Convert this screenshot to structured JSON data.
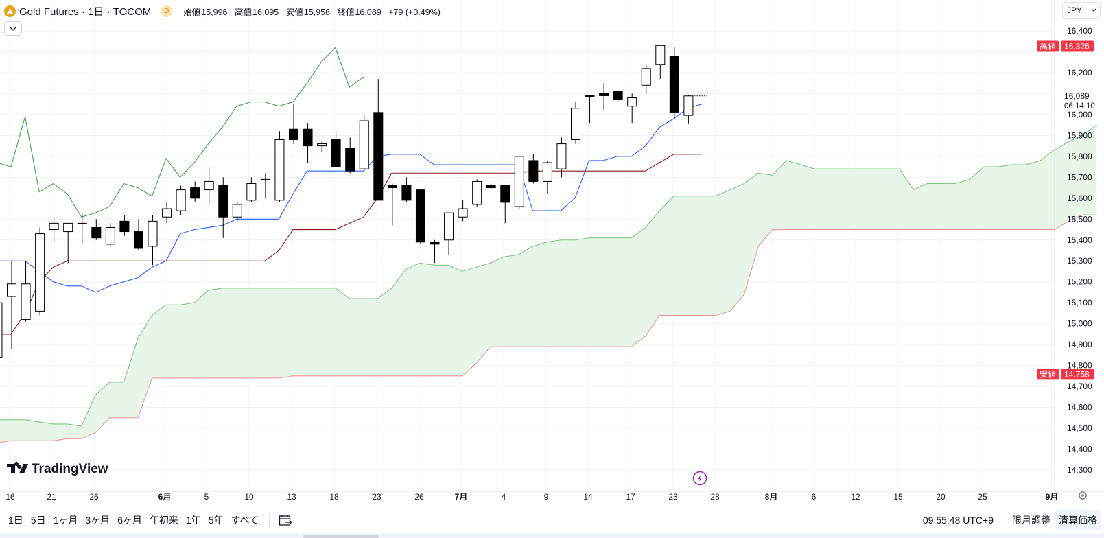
{
  "header": {
    "symbol_title": "Gold Futures · 1日 · TOCOM",
    "delay_badge": "D",
    "ohlc": [
      {
        "label": "始値",
        "value": "15,996"
      },
      {
        "label": "高値",
        "value": "16,095"
      },
      {
        "label": "安値",
        "value": "15,958"
      },
      {
        "label": "終値",
        "value": "16,089"
      }
    ],
    "change": "+79 (+0.49%)"
  },
  "currency": "JPY",
  "price_axis": {
    "labels": [
      "16,400",
      "16,200",
      "16,000",
      "15,900",
      "15,800",
      "15,700",
      "15,600",
      "15,500",
      "15,400",
      "15,300",
      "15,200",
      "15,100",
      "15,000",
      "14,900",
      "14,800",
      "14,700",
      "14,600",
      "14,500",
      "14,400",
      "14,300"
    ],
    "high_marker": {
      "label": "高値",
      "value": "16,326"
    },
    "low_marker": {
      "label": "安値",
      "value": "14,758"
    },
    "last_price": "16,089",
    "countdown": "06:14:10"
  },
  "time_axis": {
    "labels": [
      "16",
      "21",
      "26",
      "6月",
      "5",
      "10",
      "13",
      "18",
      "23",
      "26",
      "7月",
      "4",
      "9",
      "14",
      "17",
      "23",
      "28",
      "8月",
      "6",
      "12",
      "15",
      "20",
      "25",
      "9月"
    ]
  },
  "branding": "TradingView",
  "colors": {
    "tenkan": "#2962ff",
    "kijun": "#8b1a1a",
    "chikou": "#43a047",
    "span_b": "#ef9a9a",
    "cloud": "#e8f5e9",
    "up_body": "#ffffff",
    "down_body": "#000000",
    "marker_red": "#f23645"
  },
  "chart_data": {
    "type": "candlestick",
    "title": "Gold Futures · 1日 · TOCOM",
    "indicator": "Ichimoku Cloud",
    "ylim": [
      14220,
      16460
    ],
    "date_labels": [
      "16",
      "21",
      "26",
      "6月",
      "5",
      "10",
      "13",
      "18",
      "23",
      "26",
      "7月",
      "4",
      "9",
      "14",
      "17",
      "23",
      "28",
      "8月",
      "6",
      "12",
      "15",
      "20",
      "25",
      "9月"
    ],
    "candles": [
      {
        "o": 14840,
        "h": 15160,
        "l": 14830,
        "c": 15100
      },
      {
        "o": 15130,
        "h": 15300,
        "l": 14880,
        "c": 15190
      },
      {
        "o": 15020,
        "h": 15300,
        "l": 15010,
        "c": 15190
      },
      {
        "o": 15060,
        "h": 15460,
        "l": 15040,
        "c": 15430
      },
      {
        "o": 15450,
        "h": 15510,
        "l": 15390,
        "c": 15480
      },
      {
        "o": 15440,
        "h": 15470,
        "l": 15290,
        "c": 15480
      },
      {
        "o": 15480,
        "h": 15530,
        "l": 15380,
        "c": 15480
      },
      {
        "o": 15460,
        "h": 15500,
        "l": 15400,
        "c": 15410
      },
      {
        "o": 15380,
        "h": 15480,
        "l": 15370,
        "c": 15460
      },
      {
        "o": 15490,
        "h": 15520,
        "l": 15420,
        "c": 15440
      },
      {
        "o": 15440,
        "h": 15500,
        "l": 15350,
        "c": 15360
      },
      {
        "o": 15370,
        "h": 15520,
        "l": 15280,
        "c": 15490
      },
      {
        "o": 15510,
        "h": 15580,
        "l": 15480,
        "c": 15550
      },
      {
        "o": 15540,
        "h": 15660,
        "l": 15520,
        "c": 15640
      },
      {
        "o": 15650,
        "h": 15680,
        "l": 15580,
        "c": 15600
      },
      {
        "o": 15640,
        "h": 15750,
        "l": 15570,
        "c": 15680
      },
      {
        "o": 15660,
        "h": 15700,
        "l": 15410,
        "c": 15510
      },
      {
        "o": 15510,
        "h": 15580,
        "l": 15490,
        "c": 15570
      },
      {
        "o": 15590,
        "h": 15700,
        "l": 15580,
        "c": 15670
      },
      {
        "o": 15690,
        "h": 15720,
        "l": 15600,
        "c": 15690
      },
      {
        "o": 15590,
        "h": 15920,
        "l": 15580,
        "c": 15880
      },
      {
        "o": 15930,
        "h": 16050,
        "l": 15860,
        "c": 15880
      },
      {
        "o": 15930,
        "h": 15960,
        "l": 15770,
        "c": 15850
      },
      {
        "o": 15850,
        "h": 15870,
        "l": 15820,
        "c": 15860
      },
      {
        "o": 15880,
        "h": 15920,
        "l": 15760,
        "c": 15750
      },
      {
        "o": 15840,
        "h": 15890,
        "l": 15720,
        "c": 15730
      },
      {
        "o": 15740,
        "h": 16000,
        "l": 15740,
        "c": 15970
      },
      {
        "o": 16010,
        "h": 16170,
        "l": 15590,
        "c": 15590
      },
      {
        "o": 15660,
        "h": 15670,
        "l": 15470,
        "c": 15650
      },
      {
        "o": 15660,
        "h": 15700,
        "l": 15580,
        "c": 15590
      },
      {
        "o": 15640,
        "h": 15640,
        "l": 15380,
        "c": 15390
      },
      {
        "o": 15390,
        "h": 15400,
        "l": 15290,
        "c": 15380
      },
      {
        "o": 15400,
        "h": 15530,
        "l": 15330,
        "c": 15530
      },
      {
        "o": 15510,
        "h": 15590,
        "l": 15490,
        "c": 15550
      },
      {
        "o": 15570,
        "h": 15690,
        "l": 15560,
        "c": 15680
      },
      {
        "o": 15660,
        "h": 15670,
        "l": 15650,
        "c": 15650
      },
      {
        "o": 15660,
        "h": 15660,
        "l": 15480,
        "c": 15580
      },
      {
        "o": 15560,
        "h": 15800,
        "l": 15550,
        "c": 15800
      },
      {
        "o": 15780,
        "h": 15810,
        "l": 15670,
        "c": 15680
      },
      {
        "o": 15680,
        "h": 15780,
        "l": 15620,
        "c": 15770
      },
      {
        "o": 15740,
        "h": 15890,
        "l": 15700,
        "c": 15860
      },
      {
        "o": 15880,
        "h": 16060,
        "l": 15860,
        "c": 16030
      },
      {
        "o": 16090,
        "h": 16090,
        "l": 15960,
        "c": 16090
      },
      {
        "o": 16100,
        "h": 16150,
        "l": 16020,
        "c": 16090
      },
      {
        "o": 16110,
        "h": 16110,
        "l": 16060,
        "c": 16070
      },
      {
        "o": 16040,
        "h": 16100,
        "l": 15960,
        "c": 16080
      },
      {
        "o": 16140,
        "h": 16240,
        "l": 16100,
        "c": 16220
      },
      {
        "o": 16240,
        "h": 16330,
        "l": 16170,
        "c": 16330
      },
      {
        "o": 16280,
        "h": 16320,
        "l": 15980,
        "c": 16010
      },
      {
        "o": 15996,
        "h": 16095,
        "l": 15958,
        "c": 16089
      }
    ],
    "tenkan_sen": [
      15300,
      15300,
      15300,
      15250,
      15200,
      15180,
      15180,
      15150,
      15180,
      15200,
      15220,
      15270,
      15300,
      15430,
      15450,
      15460,
      15470,
      15500,
      15500,
      15500,
      15500,
      15620,
      15730,
      15730,
      15730,
      15730,
      15730,
      15800,
      15810,
      15810,
      15810,
      15760,
      15760,
      15760,
      15760,
      15760,
      15760,
      15760,
      15540,
      15540,
      15540,
      15600,
      15780,
      15780,
      15800,
      15800,
      15850,
      15940,
      15980,
      16030,
      16050
    ],
    "kijun_sen": [
      14950,
      14950,
      15050,
      15200,
      15270,
      15300,
      15300,
      15300,
      15300,
      15300,
      15300,
      15300,
      15300,
      15300,
      15300,
      15300,
      15300,
      15300,
      15300,
      15300,
      15350,
      15450,
      15450,
      15450,
      15450,
      15480,
      15510,
      15600,
      15720,
      15720,
      15720,
      15720,
      15720,
      15720,
      15720,
      15720,
      15720,
      15720,
      15730,
      15730,
      15730,
      15730,
      15730,
      15730,
      15730,
      15730,
      15730,
      15770,
      15810,
      15810,
      15810
    ],
    "chikou_span": [
      15770,
      15750,
      15990,
      15630,
      15670,
      15620,
      15510,
      15530,
      15560,
      15670,
      15650,
      15610,
      15790,
      15700,
      15770,
      15860,
      15940,
      16040,
      16060,
      16060,
      16040,
      16060,
      16150,
      16250,
      16320,
      16130,
      16180
    ],
    "senkou_span_a": [
      14540,
      14540,
      14540,
      14530,
      14520,
      14520,
      14510,
      14660,
      14720,
      14720,
      14930,
      15040,
      15090,
      15090,
      15100,
      15160,
      15170,
      15170,
      15170,
      15170,
      15170,
      15170,
      15170,
      15170,
      15170,
      15120,
      15120,
      15120,
      15170,
      15260,
      15290,
      15280,
      15280,
      15250,
      15270,
      15290,
      15320,
      15330,
      15370,
      15390,
      15400,
      15400,
      15410,
      15410,
      15410,
      15410,
      15460,
      15540,
      15610,
      15610,
      15610,
      15610,
      15640,
      15670,
      15720,
      15710,
      15780,
      15760,
      15740,
      15740,
      15740,
      15740,
      15740,
      15740,
      15740,
      15640,
      15670,
      15670,
      15670,
      15690,
      15750,
      15750,
      15760,
      15760,
      15780,
      15830,
      15870,
      15900,
      15950
    ],
    "senkou_span_b": [
      14430,
      14440,
      14440,
      14440,
      14440,
      14450,
      14450,
      14480,
      14550,
      14550,
      14550,
      14740,
      14740,
      14740,
      14740,
      14740,
      14740,
      14740,
      14740,
      14740,
      14740,
      14750,
      14750,
      14750,
      14750,
      14750,
      14750,
      14750,
      14750,
      14750,
      14750,
      14750,
      14750,
      14750,
      14810,
      14890,
      14890,
      14890,
      14890,
      14890,
      14890,
      14890,
      14890,
      14890,
      14890,
      14890,
      14940,
      15040,
      15040,
      15040,
      15040,
      15040,
      15060,
      15140,
      15370,
      15450,
      15450,
      15450,
      15450,
      15450,
      15450,
      15450,
      15450,
      15450,
      15450,
      15450,
      15450,
      15450,
      15450,
      15450,
      15450,
      15450,
      15450,
      15450,
      15450,
      15450,
      15490,
      15520,
      15520
    ]
  },
  "bottom_bar": {
    "ranges": [
      "1日",
      "5日",
      "1ヶ月",
      "3ヶ月",
      "6ヶ月",
      "年初来",
      "1年",
      "5年",
      "すべて"
    ],
    "clock": "09:55:48 UTC+9",
    "adjust_label": "限月調整",
    "settlement_label": "清算価格"
  }
}
